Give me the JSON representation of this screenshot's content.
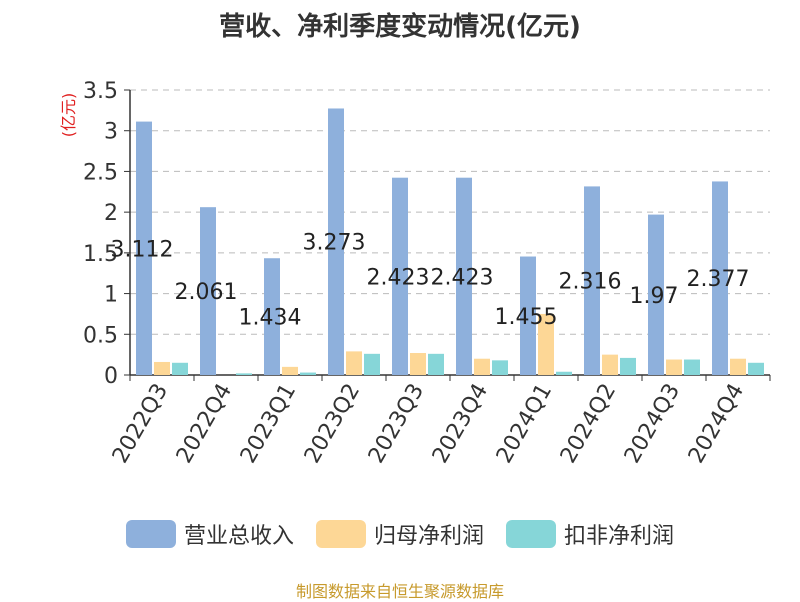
{
  "chart_data": {
    "type": "bar",
    "title": "营收、净利季度变动情况(亿元)",
    "ylabel": "(亿元)",
    "ylim": [
      0,
      3.5
    ],
    "yticks": [
      "0",
      "0.5",
      "1",
      "1.5",
      "2",
      "2.5",
      "3",
      "3.5"
    ],
    "grid": true,
    "legend_position": "bottom",
    "categories": [
      "2022Q3",
      "2022Q4",
      "2023Q1",
      "2023Q2",
      "2023Q3",
      "2023Q4",
      "2024Q1",
      "2024Q2",
      "2024Q3",
      "2024Q4"
    ],
    "series": [
      {
        "name": "营业总收入",
        "color": "#8eb0dc",
        "values": [
          3.112,
          2.061,
          1.434,
          3.273,
          2.423,
          2.423,
          1.455,
          2.316,
          1.97,
          2.377
        ],
        "labels": [
          "3.112",
          "2.061",
          "1.434",
          "3.273",
          "2.423",
          "2.423",
          "1.455",
          "2.316",
          "1.97",
          "2.377"
        ]
      },
      {
        "name": "归母净利润",
        "color": "#fdd796",
        "values": [
          0.16,
          0.0,
          0.1,
          0.29,
          0.27,
          0.2,
          0.75,
          0.25,
          0.19,
          0.2
        ]
      },
      {
        "name": "扣非净利润",
        "color": "#86d6d8",
        "values": [
          0.15,
          0.02,
          0.03,
          0.26,
          0.26,
          0.18,
          0.04,
          0.21,
          0.19,
          0.15
        ]
      }
    ]
  },
  "source_text": "制图数据来自恒生聚源数据库"
}
